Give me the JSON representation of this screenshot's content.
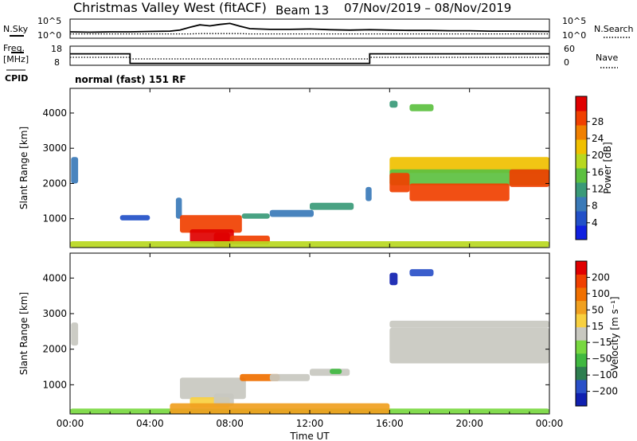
{
  "title": {
    "station": "Christmas Valley West (fitACF)",
    "beam": "Beam 13",
    "dates": "07/Nov/2019 – 08/Nov/2019"
  },
  "params": {
    "nsky_label": "N.Sky",
    "nsearch_label": "N.Search",
    "freq_label_1": "Freq.",
    "freq_label_2": "[MHz]",
    "nave_label": "Nave",
    "cpid_label": "CPID",
    "cpid_value": "normal (fast) 151 RF",
    "noise_ticks_left": [
      "10^5",
      "10^0"
    ],
    "noise_ticks_right": [
      "10^5",
      "10^0"
    ],
    "freq_ticks_left": [
      "18",
      "8"
    ],
    "nave_ticks_right": [
      "60",
      "0"
    ]
  },
  "chart_data": [
    {
      "type": "line",
      "name": "noise",
      "x_hours": [
        0,
        1,
        2,
        3,
        4,
        5,
        5.5,
        6,
        6.5,
        7,
        7.5,
        8,
        8.5,
        9,
        10,
        11,
        12,
        13,
        14,
        15,
        16,
        17,
        18,
        19,
        20,
        21,
        22,
        23,
        24
      ],
      "series": [
        {
          "name": "N.Sky",
          "values": [
            0.32,
            0.3,
            0.32,
            0.32,
            0.34,
            0.36,
            0.42,
            0.58,
            0.72,
            0.66,
            0.74,
            0.8,
            0.64,
            0.5,
            0.46,
            0.46,
            0.48,
            0.44,
            0.42,
            0.44,
            0.42,
            0.4,
            0.4,
            0.38,
            0.38,
            0.36,
            0.36,
            0.35,
            0.34
          ]
        },
        {
          "name": "N.Search",
          "values": [
            0.2,
            0.2,
            0.2,
            0.2,
            0.2,
            0.2,
            0.2,
            0.2,
            0.22,
            0.22,
            0.22,
            0.22,
            0.22,
            0.2,
            0.2,
            0.2,
            0.2,
            0.2,
            0.2,
            0.2,
            0.2,
            0.2,
            0.2,
            0.2,
            0.2,
            0.2,
            0.2,
            0.2,
            0.2
          ]
        }
      ]
    },
    {
      "type": "line",
      "name": "frequency-nave",
      "series": [
        {
          "name": "Freq.",
          "x_hours": [
            0,
            3,
            3,
            15,
            15,
            24
          ],
          "values": [
            14,
            14,
            9,
            9,
            14,
            14
          ]
        },
        {
          "name": "Nave",
          "x_hours": [
            0,
            3,
            3,
            15,
            15,
            24
          ],
          "values": [
            25,
            25,
            20,
            20,
            25,
            25
          ]
        }
      ]
    },
    {
      "type": "heatmap",
      "name": "power",
      "title": "",
      "xlabel": "",
      "ylabel": "Slant Range [km]",
      "xlim_hours": [
        0,
        24
      ],
      "ylim_km": [
        180,
        4700
      ],
      "yticks": [
        1000,
        2000,
        3000,
        4000
      ],
      "colorbar": {
        "label": "Power [dB]",
        "ticks": [
          "4",
          "8",
          "12",
          "16",
          "20",
          "24",
          "28"
        ],
        "colors": [
          "#1020e0",
          "#2250c8",
          "#3a7ab8",
          "#3a9a78",
          "#5cc040",
          "#b8d820",
          "#f0c000",
          "#f08000",
          "#f04000",
          "#e00000"
        ]
      },
      "blobs": [
        {
          "t0": 0.05,
          "t1": 0.4,
          "r0": 2000,
          "r1": 2750,
          "c": 2
        },
        {
          "t0": 2.5,
          "t1": 4.0,
          "r0": 950,
          "r1": 1100,
          "c": 1
        },
        {
          "t0": 5.3,
          "t1": 5.6,
          "r0": 1000,
          "r1": 1600,
          "c": 2
        },
        {
          "t0": 5.5,
          "t1": 8.6,
          "r0": 600,
          "r1": 1100,
          "c": 8
        },
        {
          "t0": 6.0,
          "t1": 8.2,
          "r0": 300,
          "r1": 700,
          "c": 9
        },
        {
          "t0": 7.2,
          "t1": 8.0,
          "r0": 200,
          "r1": 600,
          "c": 9
        },
        {
          "t0": 8.0,
          "t1": 10.0,
          "r0": 280,
          "r1": 520,
          "c": 8
        },
        {
          "t0": 8.6,
          "t1": 10.0,
          "r0": 1000,
          "r1": 1150,
          "c": 3
        },
        {
          "t0": 10.0,
          "t1": 12.2,
          "r0": 1050,
          "r1": 1250,
          "c": 2
        },
        {
          "t0": 12.0,
          "t1": 14.2,
          "r0": 1250,
          "r1": 1450,
          "c": 3
        },
        {
          "t0": 14.8,
          "t1": 15.1,
          "r0": 1500,
          "r1": 1900,
          "c": 2
        },
        {
          "t0": 16.0,
          "t1": 24.0,
          "r0": 2300,
          "r1": 2750,
          "c": 6
        },
        {
          "t0": 16.0,
          "t1": 24.0,
          "r0": 1950,
          "r1": 2400,
          "c": 4
        },
        {
          "t0": 16.0,
          "t1": 17.0,
          "r0": 1750,
          "r1": 2300,
          "c": 8
        },
        {
          "t0": 17.0,
          "t1": 22.0,
          "r0": 1500,
          "r1": 2000,
          "c": 8
        },
        {
          "t0": 22.0,
          "t1": 24.0,
          "r0": 1900,
          "r1": 2400,
          "c": 8
        },
        {
          "t0": 16.0,
          "t1": 16.4,
          "r0": 4150,
          "r1": 4350,
          "c": 3
        },
        {
          "t0": 17.0,
          "t1": 18.2,
          "r0": 4050,
          "r1": 4250,
          "c": 4
        },
        {
          "t0": 0.0,
          "t1": 24.0,
          "r0": 190,
          "r1": 360,
          "c": 5
        }
      ]
    },
    {
      "type": "heatmap",
      "name": "velocity",
      "title": "",
      "xlabel": "Time UT",
      "ylabel": "Slant Range [km]",
      "xlim_hours": [
        0,
        24
      ],
      "ylim_km": [
        180,
        4700
      ],
      "yticks": [
        1000,
        2000,
        3000,
        4000
      ],
      "xticks": [
        "00:00",
        "04:00",
        "08:00",
        "12:00",
        "16:00",
        "20:00",
        "00:00"
      ],
      "colorbar": {
        "label": "Velocity [m s⁻¹]",
        "ticks": [
          "200",
          "100",
          "50",
          "15",
          "−15",
          "−50",
          "−100",
          "−200"
        ],
        "colors": [
          "#1020b0",
          "#2a50c8",
          "#2e7e50",
          "#40b840",
          "#78d840",
          "#c8c8c0",
          "#f8d040",
          "#f0a020",
          "#f07000",
          "#f04000",
          "#e00000"
        ]
      },
      "blobs": [
        {
          "t0": 0.05,
          "t1": 0.4,
          "r0": 2100,
          "r1": 2750,
          "c": 5
        },
        {
          "t0": 5.5,
          "t1": 8.8,
          "r0": 600,
          "r1": 1200,
          "c": 5
        },
        {
          "t0": 6.0,
          "t1": 8.0,
          "r0": 350,
          "r1": 650,
          "c": 6
        },
        {
          "t0": 7.2,
          "t1": 8.2,
          "r0": 400,
          "r1": 750,
          "c": 5
        },
        {
          "t0": 8.5,
          "t1": 10.5,
          "r0": 1100,
          "r1": 1300,
          "c": 8
        },
        {
          "t0": 10.0,
          "t1": 12.0,
          "r0": 1100,
          "r1": 1300,
          "c": 5
        },
        {
          "t0": 12.0,
          "t1": 14.0,
          "r0": 1250,
          "r1": 1450,
          "c": 5
        },
        {
          "t0": 13.0,
          "t1": 13.6,
          "r0": 1300,
          "r1": 1450,
          "c": 3
        },
        {
          "t0": 16.0,
          "t1": 24.0,
          "r0": 1600,
          "r1": 2600,
          "c": 5
        },
        {
          "t0": 16.0,
          "t1": 24.0,
          "r0": 2600,
          "r1": 2800,
          "c": 5
        },
        {
          "t0": 16.0,
          "t1": 16.4,
          "r0": 3800,
          "r1": 4150,
          "c": 0
        },
        {
          "t0": 17.0,
          "t1": 18.2,
          "r0": 4050,
          "r1": 4250,
          "c": 1
        },
        {
          "t0": 0.0,
          "t1": 24.0,
          "r0": 190,
          "r1": 330,
          "c": 4
        },
        {
          "t0": 5.0,
          "t1": 16.0,
          "r0": 190,
          "r1": 480,
          "c": 7
        }
      ]
    }
  ]
}
